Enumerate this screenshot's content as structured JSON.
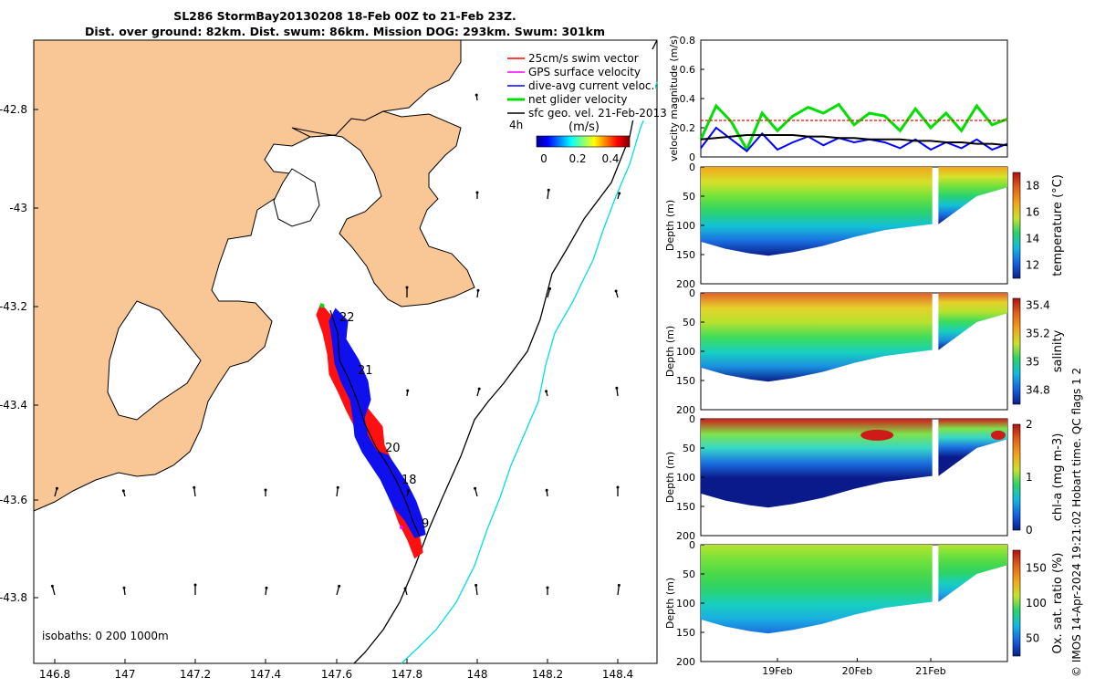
{
  "title": {
    "line1": "SL286 StormBay20130208 18-Feb 00Z to 21-Feb 23Z.",
    "line2": "Dist. over ground: 82km. Dist. swum: 86km. Mission DOG: 293km. Swum: 301km"
  },
  "map": {
    "xticks": [
      "146.8",
      "147",
      "147.2",
      "147.4",
      "147.6",
      "147.8",
      "148",
      "148.2",
      "148.4"
    ],
    "yticks": [
      "-42.8",
      "-43",
      "-43.2",
      "-43.4",
      "-43.6",
      "-43.8"
    ],
    "isobath_label": "isobaths: 0   200  1000m",
    "legend": [
      {
        "label": "25cm/s swim vector",
        "color": "#ff0000"
      },
      {
        "label": "GPS surface velocity",
        "color": "#ff00ff"
      },
      {
        "label": "dive-avg current veloc.",
        "color": "#0000ff"
      },
      {
        "label": "net glider velocity",
        "color": "#00dd00"
      },
      {
        "label": "sfc geo. vel. 21-Feb-2013",
        "color": "#000000"
      }
    ],
    "legend_tag": "4h",
    "colorbar": {
      "unit": "(m/s)",
      "ticks": [
        "0",
        "0.2",
        "0.4"
      ]
    },
    "track_day_labels": [
      "22",
      "21",
      "20",
      "18",
      "9"
    ],
    "colors": {
      "land": "#f9c795",
      "coast": "#000000",
      "isobath_200": "#000000",
      "isobath_1000": "#00e0e0"
    }
  },
  "chart_data": [
    {
      "type": "line",
      "title": "",
      "ylabel": "velocity magnitude (m/s)",
      "ylim": [
        0,
        0.8
      ],
      "yticks": [
        "0",
        "0.2",
        "0.4",
        "0.6",
        "0.8"
      ],
      "x": [
        0,
        0.05,
        0.1,
        0.15,
        0.2,
        0.25,
        0.3,
        0.35,
        0.4,
        0.45,
        0.5,
        0.55,
        0.6,
        0.65,
        0.7,
        0.75,
        0.8,
        0.85,
        0.9,
        0.95,
        1
      ],
      "series": [
        {
          "color": "#00e000",
          "values": [
            0.12,
            0.35,
            0.24,
            0.05,
            0.3,
            0.18,
            0.28,
            0.34,
            0.3,
            0.36,
            0.22,
            0.3,
            0.28,
            0.18,
            0.33,
            0.2,
            0.3,
            0.18,
            0.35,
            0.22,
            0.26
          ]
        },
        {
          "color": "#0000ff",
          "values": [
            0.06,
            0.2,
            0.12,
            0.04,
            0.16,
            0.05,
            0.1,
            0.14,
            0.08,
            0.13,
            0.1,
            0.12,
            0.1,
            0.06,
            0.12,
            0.05,
            0.1,
            0.06,
            0.12,
            0.05,
            0.09
          ]
        },
        {
          "color": "#000000",
          "values": [
            0.12,
            0.13,
            0.14,
            0.15,
            0.15,
            0.15,
            0.15,
            0.14,
            0.14,
            0.13,
            0.13,
            0.12,
            0.12,
            0.12,
            0.11,
            0.11,
            0.1,
            0.1,
            0.09,
            0.09,
            0.08
          ]
        },
        {
          "color": "#ff0000",
          "values": [
            0.25,
            0.25,
            0.25,
            0.25,
            0.25,
            0.25,
            0.25,
            0.25,
            0.25,
            0.25,
            0.25,
            0.25,
            0.25,
            0.25,
            0.25,
            0.25,
            0.25,
            0.25,
            0.25,
            0.25,
            0.25
          ]
        }
      ]
    },
    {
      "type": "heatmap",
      "ylabel": "Depth (m)",
      "ylim": [
        200,
        0
      ],
      "yticks": [
        "0",
        "50",
        "100",
        "150",
        "200"
      ],
      "colorbar_label": "temperature (°C)",
      "cticks": [
        "12",
        "14",
        "16",
        "18"
      ],
      "crange": [
        11,
        19
      ]
    },
    {
      "type": "heatmap",
      "ylabel": "Depth (m)",
      "ylim": [
        200,
        0
      ],
      "yticks": [
        "0",
        "50",
        "100",
        "150",
        "200"
      ],
      "colorbar_label": "salinity",
      "cticks": [
        "34.8",
        "35",
        "35.2",
        "35.4"
      ],
      "crange": [
        34.7,
        35.45
      ]
    },
    {
      "type": "heatmap",
      "ylabel": "Depth (m)",
      "ylim": [
        200,
        0
      ],
      "yticks": [
        "0",
        "50",
        "100",
        "150",
        "200"
      ],
      "colorbar_label": "chl-a (mg m-3)",
      "cticks": [
        "0",
        "1",
        "2"
      ],
      "crange": [
        0,
        2
      ]
    },
    {
      "type": "heatmap",
      "ylabel": "Depth (m)",
      "ylim": [
        200,
        0
      ],
      "yticks": [
        "0",
        "50",
        "100",
        "150",
        "200"
      ],
      "colorbar_label": "Ox. sat. ratio (%)",
      "cticks": [
        "50",
        "100",
        "150"
      ],
      "crange": [
        25,
        175
      ],
      "xticks": [
        "19Feb",
        "20Feb",
        "21Feb"
      ]
    }
  ],
  "footer_vertical": "© IMOS 14-Apr-2024 19:21:02 Hobart time. QC flags 1  2"
}
